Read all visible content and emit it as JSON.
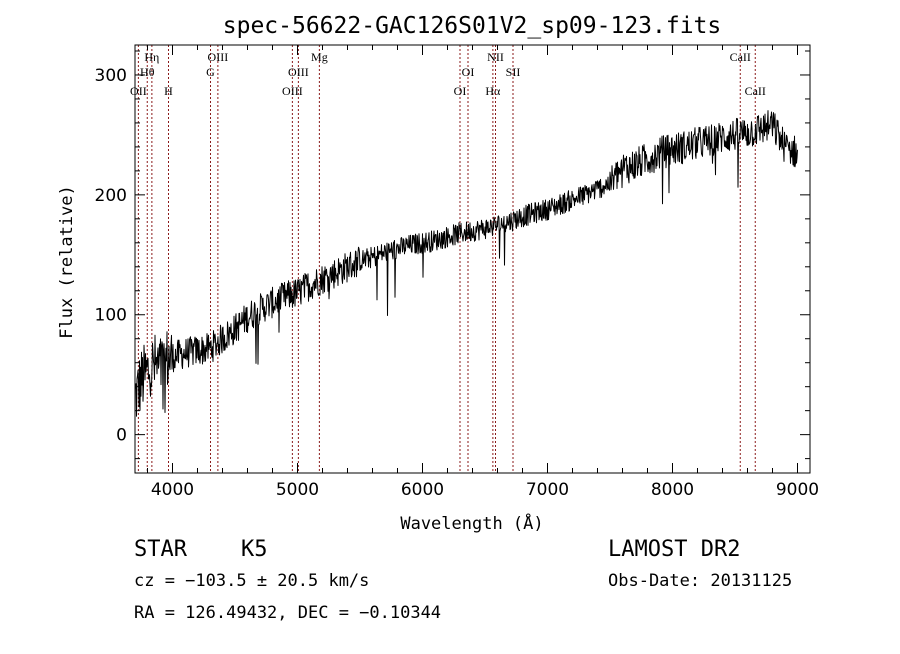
{
  "chart_data": {
    "type": "line",
    "title": "spec-56622-GAC126S01V2_sp09-123.fits",
    "xlabel": "Wavelength (Å)",
    "ylabel": "Flux (relative)",
    "xlim": [
      3700,
      9100
    ],
    "ylim": [
      -32,
      325
    ],
    "xticks": [
      4000,
      5000,
      6000,
      7000,
      8000,
      9000
    ],
    "yticks": [
      0,
      100,
      200,
      300
    ],
    "x_tick_labels": [
      "4000",
      "5000",
      "6000",
      "7000",
      "8000",
      "9000"
    ],
    "y_tick_labels": [
      "0",
      "100",
      "200",
      "300"
    ],
    "grid": false,
    "line_color": "#000000",
    "marker_line_color": "#8b1a1a",
    "series": [
      {
        "x": [
          3700,
          3750,
          3800,
          3850,
          3900,
          3950,
          4000,
          4100,
          4200,
          4300,
          4400,
          4500,
          4600,
          4700,
          4800,
          4900,
          5000,
          5100,
          5200,
          5300,
          5400,
          5500,
          5600,
          5700,
          5800,
          5900,
          6000,
          6100,
          6200,
          6300,
          6400,
          6500,
          6600,
          6700,
          6800,
          6900,
          7000,
          7100,
          7200,
          7300,
          7400,
          7500,
          7600,
          7700,
          7800,
          7900,
          8000,
          8100,
          8200,
          8300,
          8400,
          8500,
          8600,
          8700,
          8800,
          8900,
          9000
        ],
        "y": [
          30,
          45,
          52,
          58,
          55,
          62,
          65,
          68,
          70,
          72,
          80,
          88,
          98,
          105,
          110,
          115,
          118,
          125,
          130,
          135,
          140,
          145,
          148,
          152,
          155,
          158,
          160,
          162,
          165,
          168,
          170,
          172,
          175,
          178,
          182,
          185,
          188,
          192,
          196,
          200,
          205,
          210,
          222,
          225,
          230,
          235,
          238,
          240,
          243,
          245,
          248,
          250,
          252,
          255,
          258,
          240,
          235
        ]
      }
    ],
    "line_markers": [
      {
        "x": 3727,
        "label": "OII",
        "row": 3
      },
      {
        "x": 3798,
        "label": "Hθ",
        "row": 2
      },
      {
        "x": 3835,
        "label": "Hη",
        "row": 1
      },
      {
        "x": 3968,
        "label": "H",
        "row": 3
      },
      {
        "x": 4304,
        "label": "G",
        "row": 2
      },
      {
        "x": 4363,
        "label": "OIII",
        "row": 1
      },
      {
        "x": 4959,
        "label": "OIII",
        "row": 3
      },
      {
        "x": 5007,
        "label": "OIII",
        "row": 2
      },
      {
        "x": 5175,
        "label": "Mg",
        "row": 1
      },
      {
        "x": 6300,
        "label": "OI",
        "row": 3
      },
      {
        "x": 6364,
        "label": "OI",
        "row": 2
      },
      {
        "x": 6563,
        "label": "Hα",
        "row": 3
      },
      {
        "x": 6584,
        "label": "NII",
        "row": 1
      },
      {
        "x": 6724,
        "label": "SII",
        "row": 2
      },
      {
        "x": 8542,
        "label": "CaII",
        "row": 1
      },
      {
        "x": 8662,
        "label": "CaII",
        "row": 3
      }
    ]
  },
  "footer": {
    "object_class": "STAR",
    "subclass": "K5",
    "survey": "LAMOST DR2",
    "redshift": "cz = −103.5 ± 20.5 km/s",
    "obs_date": "Obs-Date: 20131125",
    "coords": "RA = 126.49432, DEC =  −0.10344"
  }
}
